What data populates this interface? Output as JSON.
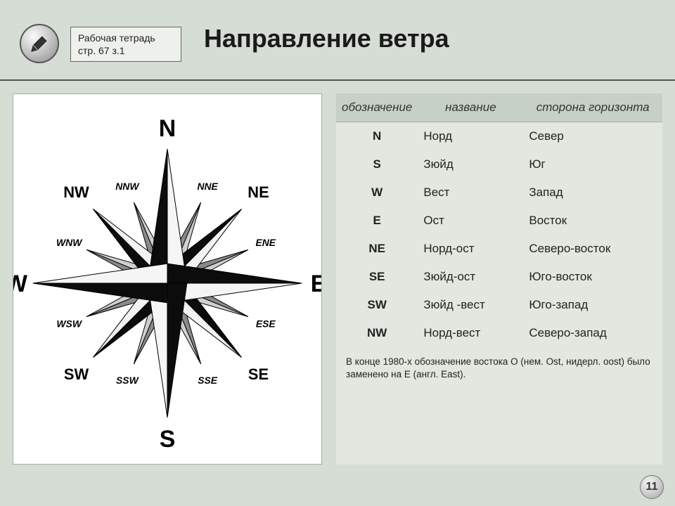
{
  "header": {
    "note_line1": "Рабочая тетрадь",
    "note_line2": "стр. 67 з.1",
    "title": "Направление ветра"
  },
  "compass": {
    "cardinal": {
      "N": "N",
      "S": "S",
      "E": "E",
      "W": "W",
      "NE": "NE",
      "SE": "SE",
      "SW": "SW",
      "NW": "NW"
    },
    "secondary": {
      "NNE": "NNE",
      "ENE": "ENE",
      "ESE": "ESE",
      "SSE": "SSE",
      "SSW": "SSW",
      "WSW": "WSW",
      "WNW": "WNW",
      "NNW": "NNW"
    },
    "colors": {
      "primary_fill": "#0c0c0c",
      "ordinal_fill": "#0c0c0c",
      "secondary_fill": "#8a8a8a",
      "outline": "#000000",
      "label_main_size": 34,
      "label_ord_size": 22,
      "label_sec_size": 14
    }
  },
  "table": {
    "headers": [
      "обозначение",
      "название",
      "сторона горизонта"
    ],
    "rows": [
      {
        "code": "N",
        "name": "Норд",
        "side": "Север"
      },
      {
        "code": "S",
        "name": "Зюйд",
        "side": "Юг"
      },
      {
        "code": "W",
        "name": "Вест",
        "side": "Запад"
      },
      {
        "code": "E",
        "name": "Ост",
        "side": "Восток"
      },
      {
        "code": "NE",
        "name": "Норд-ост",
        "side": "Северо-восток"
      },
      {
        "code": "SE",
        "name": "Зюйд-ост",
        "side": "Юго-восток"
      },
      {
        "code": "SW",
        "name": "Зюйд -вест",
        "side": "Юго-запад"
      },
      {
        "code": "NW",
        "name": "Норд-вест",
        "side": "Северо-запад"
      }
    ]
  },
  "footnote": "В конце 1980-х обозначение востока O (нем. Ost, нидерл. oost) было заменено на E (англ. East).",
  "page_number": "11"
}
